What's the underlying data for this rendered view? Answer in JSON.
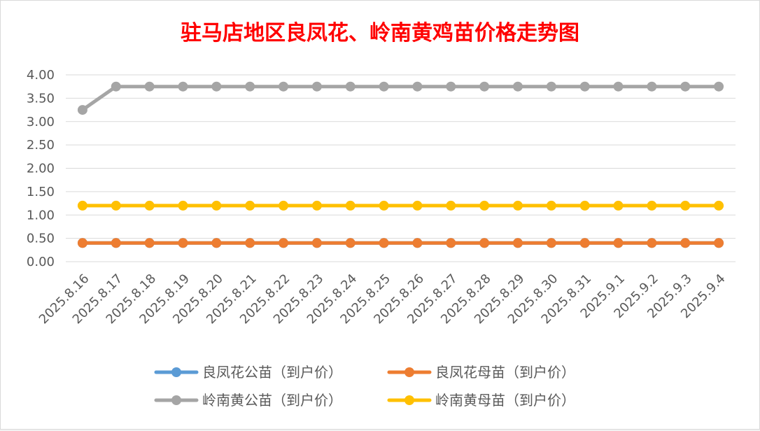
{
  "chart_data": {
    "type": "line",
    "title": "驻马店地区良凤花、岭南黄鸡苗价格走势图",
    "title_color": "#ff0000",
    "xlabel": "",
    "ylabel": "",
    "ylim": [
      0,
      4
    ],
    "yticks": [
      "0.00",
      "0.50",
      "1.00",
      "1.50",
      "2.00",
      "2.50",
      "3.00",
      "3.50",
      "4.00"
    ],
    "grid": true,
    "legend_position": "bottom",
    "categories": [
      "2025.8.16",
      "2025.8.17",
      "2025.8.18",
      "2025.8.19",
      "2025.8.20",
      "2025.8.21",
      "2025.8.22",
      "2025.8.23",
      "2025.8.24",
      "2025.8.25",
      "2025.8.26",
      "2025.8.27",
      "2025.8.28",
      "2025.8.29",
      "2025.8.30",
      "2025.8.31",
      "2025.9.1",
      "2025.9.2",
      "2025.9.3",
      "2025.9.4"
    ],
    "series": [
      {
        "name": "良凤花公苗（到户价）",
        "color": "#5b9bd5",
        "values": [
          0.4,
          0.4,
          0.4,
          0.4,
          0.4,
          0.4,
          0.4,
          0.4,
          0.4,
          0.4,
          0.4,
          0.4,
          0.4,
          0.4,
          0.4,
          0.4,
          0.4,
          0.4,
          0.4,
          0.4
        ]
      },
      {
        "name": "良凤花母苗（到户价）",
        "color": "#ed7d31",
        "values": [
          0.4,
          0.4,
          0.4,
          0.4,
          0.4,
          0.4,
          0.4,
          0.4,
          0.4,
          0.4,
          0.4,
          0.4,
          0.4,
          0.4,
          0.4,
          0.4,
          0.4,
          0.4,
          0.4,
          0.4
        ]
      },
      {
        "name": "岭南黄公苗（到户价）",
        "color": "#a5a5a5",
        "values": [
          3.25,
          3.75,
          3.75,
          3.75,
          3.75,
          3.75,
          3.75,
          3.75,
          3.75,
          3.75,
          3.75,
          3.75,
          3.75,
          3.75,
          3.75,
          3.75,
          3.75,
          3.75,
          3.75,
          3.75
        ]
      },
      {
        "name": "岭南黄母苗（到户价）",
        "color": "#ffc000",
        "values": [
          1.2,
          1.2,
          1.2,
          1.2,
          1.2,
          1.2,
          1.2,
          1.2,
          1.2,
          1.2,
          1.2,
          1.2,
          1.2,
          1.2,
          1.2,
          1.2,
          1.2,
          1.2,
          1.2,
          1.2
        ]
      }
    ]
  }
}
